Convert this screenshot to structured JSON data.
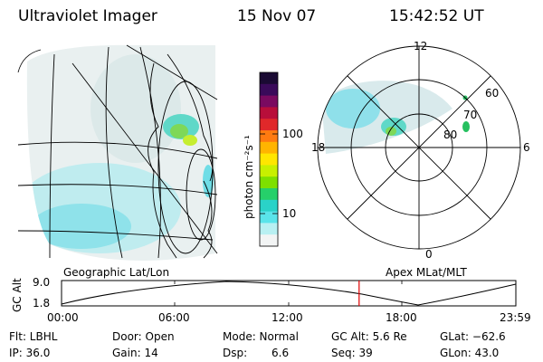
{
  "header": {
    "instrument": "Ultraviolet Imager",
    "date": "15 Nov 07",
    "time": "15:42:52 UT"
  },
  "colorbar": {
    "unit_label": "photon cm⁻²s⁻¹",
    "ticks": [
      {
        "label": "100",
        "value": 100
      },
      {
        "label": "10",
        "value": 10
      }
    ],
    "colors": [
      "#1a0a33",
      "#3a0a5a",
      "#7a0a60",
      "#b80e3a",
      "#e0282a",
      "#ff7a10",
      "#ffb400",
      "#ffe600",
      "#c8f000",
      "#7ee000",
      "#26d06a",
      "#2ad2c8",
      "#5ae4ea",
      "#b8f0f2",
      "#f2f4f4"
    ]
  },
  "left_map": {
    "caption": "Geographic Lat/Lon"
  },
  "polar_plot": {
    "caption": "Apex MLat/MLT",
    "mlt_labels": {
      "top": "12",
      "left": "18",
      "right": "6",
      "bottom": "0"
    },
    "lat_labels": [
      "60",
      "70",
      "80"
    ]
  },
  "altitude_plot": {
    "ylabel": "GC Alt",
    "yticks": [
      "9.0",
      "1.8"
    ],
    "xticks": [
      "00:00",
      "06:00",
      "12:00",
      "18:00",
      "23:59"
    ],
    "current_time_fraction": 0.655
  },
  "info": {
    "filter": "Flt: LBHL",
    "ip": "IP: 36.0",
    "door": "Door: Open",
    "gain": "Gain: 14",
    "mode": "Mode: Normal",
    "dsp_label": "Dsp:",
    "dsp_value": "6.6",
    "gcalt": "GC Alt: 5.6 Re",
    "seq": "Seq: 39",
    "glat": "GLat: −62.6",
    "glon": "GLon: 43.0"
  }
}
